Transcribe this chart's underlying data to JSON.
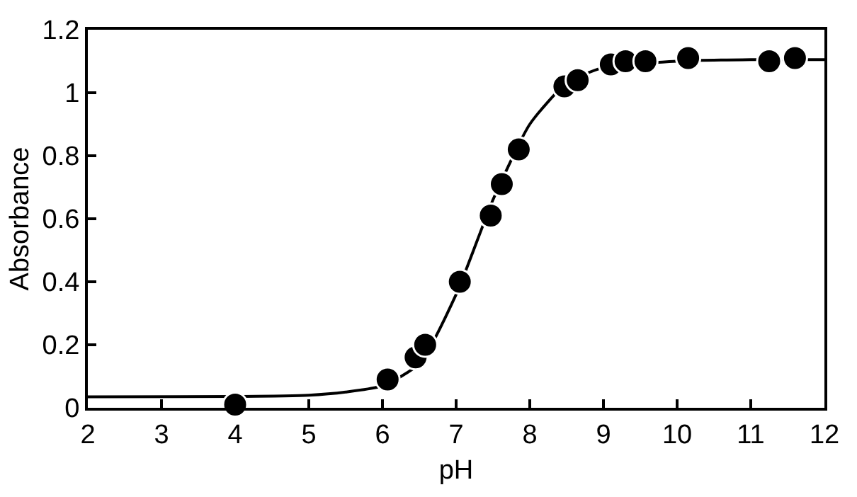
{
  "chart_data": {
    "type": "scatter",
    "xlabel": "pH",
    "ylabel": "Absorbance",
    "xlim": [
      2,
      12
    ],
    "xticks": [
      2,
      3,
      4,
      5,
      6,
      7,
      8,
      9,
      10,
      11,
      12
    ],
    "ylim": [
      0,
      1.2
    ],
    "yticks": [
      0,
      0.2,
      0.4,
      0.6,
      0.8,
      1,
      1.2
    ],
    "series": [
      {
        "type": "line",
        "color": "#000000",
        "marker": "none",
        "line_style": "solid",
        "x": [
          2,
          4,
          5,
          5.5,
          6,
          6.5,
          7,
          7.35,
          7.5,
          8,
          8.5,
          9,
          10,
          11,
          12
        ],
        "values": [
          0.035,
          0.036,
          0.04,
          0.05,
          0.07,
          0.14,
          0.36,
          0.57,
          0.66,
          0.9,
          1.03,
          1.08,
          1.1,
          1.105,
          1.105
        ]
      },
      {
        "color": "#000000",
        "marker": "circle",
        "x": [
          4.0,
          6.07,
          6.45,
          6.58,
          7.05,
          7.47,
          7.62,
          7.85,
          8.47,
          8.65,
          9.1,
          9.3,
          9.57,
          10.15,
          11.25,
          11.6
        ],
        "values": [
          0.01,
          0.09,
          0.16,
          0.2,
          0.4,
          0.61,
          0.71,
          0.82,
          1.02,
          1.04,
          1.09,
          1.1,
          1.1,
          1.11,
          1.1,
          1.11
        ]
      }
    ]
  }
}
